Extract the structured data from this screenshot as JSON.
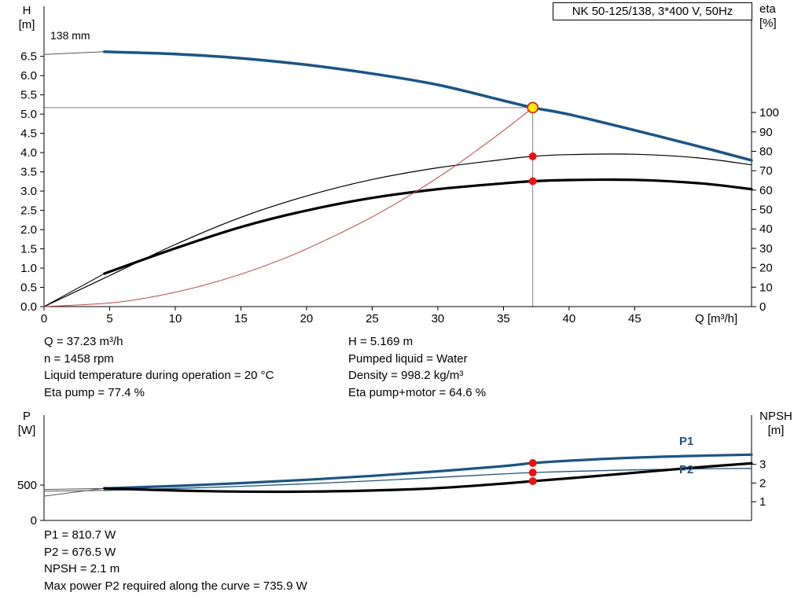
{
  "title": "NK 50-125/138, 3*400 V, 50Hz",
  "impeller": "138 mm",
  "axis_labels": {
    "top_left_1": "H",
    "top_left_2": "[m]",
    "top_right_1": "eta",
    "top_right_2": "[%]",
    "x": "Q [m³/h]",
    "bottom_left_1": "P",
    "bottom_left_2": "[W]",
    "bottom_right_1": "NPSH",
    "bottom_right_2": "[m]"
  },
  "curve_labels": {
    "p1": "P1",
    "p2": "P2"
  },
  "info": {
    "left": [
      "Q = 37.23 m³/h",
      "n = 1458 rpm",
      "Liquid temperature during operation = 20 °C",
      "Eta pump = 77.4 %"
    ],
    "right": [
      "H = 5.169 m",
      "Pumped liquid = Water",
      "Density = 998.2 kg/m³",
      "Eta pump+motor = 64.6 %"
    ]
  },
  "footer": [
    "P1 = 810.7 W",
    "P2 = 676.5 W",
    "NPSH = 2.1 m",
    "Max power P2 required along the curve = 735.9 W"
  ],
  "colors": {
    "blue": "#17568c",
    "black": "#000000",
    "system_red": "#e23b3b",
    "dot_red": "#ee1111",
    "duty_yellow": "#ffec00",
    "guide_gray": "#808080"
  },
  "chart_data": [
    {
      "type": "line",
      "title": "NK 50-125/138, 3*400 V, 50Hz",
      "xlabel": "Q [m³/h]",
      "ylabel_left": "H [m]",
      "ylabel_right": "eta [%]",
      "x_axis": {
        "min": 0,
        "max": 53.9,
        "tick_values": [
          0,
          5,
          10,
          15,
          20,
          25,
          30,
          35,
          40,
          45
        ],
        "tick_labels": [
          "0",
          "5",
          "10",
          "15",
          "20",
          "25",
          "30",
          "35",
          "40",
          "45"
        ]
      },
      "left_axis": {
        "max": 7.8,
        "tick_values": [
          0,
          0.5,
          1,
          1.5,
          2,
          2.5,
          3,
          3.5,
          4,
          4.5,
          5,
          5.5,
          6,
          6.5
        ],
        "tick_labels": [
          "0.0",
          "0.5",
          "1.0",
          "1.5",
          "2.0",
          "2.5",
          "3.0",
          "3.5",
          "4.0",
          "4.5",
          "5.0",
          "5.5",
          "6.0",
          "6.5"
        ]
      },
      "right_axis": {
        "max": 154.7,
        "tick_values": [
          0,
          10,
          20,
          30,
          40,
          50,
          60,
          70,
          80,
          90,
          100
        ],
        "tick_labels": [
          "0",
          "10",
          "20",
          "30",
          "40",
          "50",
          "60",
          "70",
          "80",
          "90",
          "100"
        ]
      },
      "guides": {
        "q": 37.23,
        "h": 5.169
      },
      "series": [
        {
          "name": "head-curve-extension",
          "axis": "left",
          "color": "#555555",
          "width": 1,
          "x": [
            0,
            4.6
          ],
          "y": [
            6.55,
            6.62
          ]
        },
        {
          "name": "head-curve",
          "axis": "left",
          "color": "#17568c",
          "width": 3.5,
          "x": [
            4.6,
            10,
            15,
            20,
            25,
            30,
            35,
            37.23,
            40,
            45,
            50,
            53.9
          ],
          "y": [
            6.62,
            6.56,
            6.45,
            6.28,
            6.05,
            5.76,
            5.35,
            5.169,
            4.99,
            4.58,
            4.15,
            3.8
          ]
        },
        {
          "name": "eta-pump-curve",
          "axis": "right",
          "color": "#000000",
          "width": 1.2,
          "x": [
            0,
            5,
            10,
            15,
            20,
            25,
            30,
            35,
            37.23,
            40,
            45,
            50,
            53.9
          ],
          "y": [
            0,
            16,
            32,
            46,
            57,
            65.5,
            71.5,
            75.8,
            77.4,
            78.3,
            78.5,
            76.5,
            73
          ]
        },
        {
          "name": "eta-pump-motor-extension",
          "axis": "right",
          "color": "#000000",
          "width": 1,
          "x": [
            0,
            4.6
          ],
          "y": [
            0,
            17
          ]
        },
        {
          "name": "eta-pump-motor-curve",
          "axis": "right",
          "color": "#000000",
          "width": 3.2,
          "x": [
            4.6,
            10,
            15,
            20,
            25,
            30,
            35,
            37.23,
            40,
            45,
            50,
            53.9
          ],
          "y": [
            17,
            30,
            41,
            49.5,
            56,
            60.5,
            63.5,
            64.6,
            65.2,
            65.3,
            63.5,
            60.5
          ]
        },
        {
          "name": "system-curve",
          "axis": "left",
          "color": "#e23b3b",
          "width": 1,
          "x": [
            0,
            6,
            12,
            18,
            24,
            28,
            31,
            33.5,
            35.5,
            36.5,
            37.23
          ],
          "y": [
            0,
            0.13,
            0.54,
            1.21,
            2.15,
            2.92,
            3.58,
            4.19,
            4.7,
            4.97,
            5.169
          ]
        }
      ],
      "markers": [
        {
          "name": "duty-point",
          "kind": "duty",
          "axis": "left",
          "x": 37.23,
          "y": 5.169
        },
        {
          "name": "eta-pump-duty-dot",
          "kind": "dot",
          "axis": "right",
          "x": 37.23,
          "y": 77.4
        },
        {
          "name": "eta-pump-motor-duty-dot",
          "kind": "dot",
          "axis": "right",
          "x": 37.23,
          "y": 64.6
        }
      ]
    },
    {
      "type": "line",
      "ylabel_left": "P [W]",
      "ylabel_right": "NPSH [m]",
      "x_axis": {
        "min": 0,
        "max": 53.9,
        "tick_values": [],
        "tick_labels": []
      },
      "left_axis": {
        "max": 1489,
        "tick_values": [
          0,
          500
        ],
        "tick_labels": [
          "0",
          "500"
        ]
      },
      "right_axis": {
        "max": 5.63,
        "tick_values": [
          1,
          2,
          3
        ],
        "tick_labels": [
          "1",
          "2",
          "3"
        ]
      },
      "series": [
        {
          "name": "p1-curve-extension",
          "axis": "left",
          "color": "#555555",
          "width": 1,
          "x": [
            0,
            4.6
          ],
          "y": [
            438,
            452
          ]
        },
        {
          "name": "p1-curve",
          "axis": "left",
          "color": "#17568c",
          "width": 3.2,
          "x": [
            4.6,
            10,
            15,
            20,
            25,
            30,
            35,
            37.23,
            40,
            45,
            50,
            53.9
          ],
          "y": [
            452,
            488,
            528,
            575,
            630,
            695,
            768,
            810.7,
            845,
            888,
            915,
            930
          ]
        },
        {
          "name": "p2-curve-extension",
          "axis": "left",
          "color": "#555555",
          "width": 1,
          "x": [
            0,
            4.6
          ],
          "y": [
            415,
            425
          ]
        },
        {
          "name": "p2-curve",
          "axis": "left",
          "color": "#17568c",
          "width": 1.3,
          "x": [
            4.6,
            10,
            15,
            20,
            25,
            30,
            35,
            37.23,
            40,
            45,
            50,
            53.9
          ],
          "y": [
            425,
            452,
            482,
            518,
            560,
            608,
            658,
            676.5,
            692,
            715,
            730,
            735.9
          ]
        },
        {
          "name": "npsh-curve-extension",
          "axis": "right",
          "color": "#555555",
          "width": 1,
          "x": [
            0,
            4.6
          ],
          "y": [
            1.3,
            1.72
          ]
        },
        {
          "name": "npsh-curve",
          "axis": "right",
          "color": "#000000",
          "width": 3.2,
          "x": [
            4.6,
            10,
            15,
            20,
            25,
            30,
            35,
            37.23,
            40,
            45,
            50,
            53.9
          ],
          "y": [
            1.72,
            1.6,
            1.54,
            1.54,
            1.6,
            1.73,
            1.97,
            2.1,
            2.25,
            2.55,
            2.85,
            3.05
          ]
        }
      ],
      "markers": [
        {
          "name": "p1-duty-dot",
          "kind": "dot",
          "axis": "left",
          "x": 37.23,
          "y": 810.7
        },
        {
          "name": "p2-duty-dot",
          "kind": "dot",
          "axis": "left",
          "x": 37.23,
          "y": 676.5
        },
        {
          "name": "npsh-duty-dot",
          "kind": "dot",
          "axis": "right",
          "x": 37.23,
          "y": 2.1
        }
      ]
    }
  ]
}
